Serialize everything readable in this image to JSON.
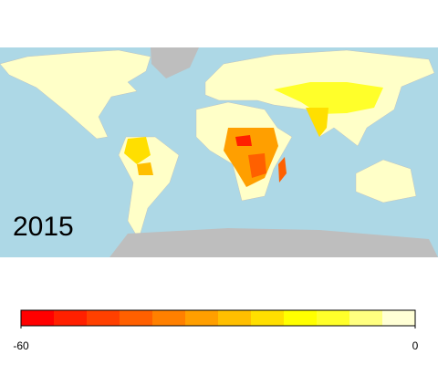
{
  "map": {
    "year": "2015"
  },
  "legend": {
    "type": "colorbar",
    "limits": [
      -60,
      0
    ],
    "ticks": [
      -60,
      0
    ],
    "colors": [
      "#FF0000",
      "#FF2000",
      "#FF4000",
      "#FF6000",
      "#FF8000",
      "#FF9F00",
      "#FFBF00",
      "#FFDF00",
      "#FFFF00",
      "#FFFF2A",
      "#FFFF80",
      "#FFFFD5"
    ]
  }
}
